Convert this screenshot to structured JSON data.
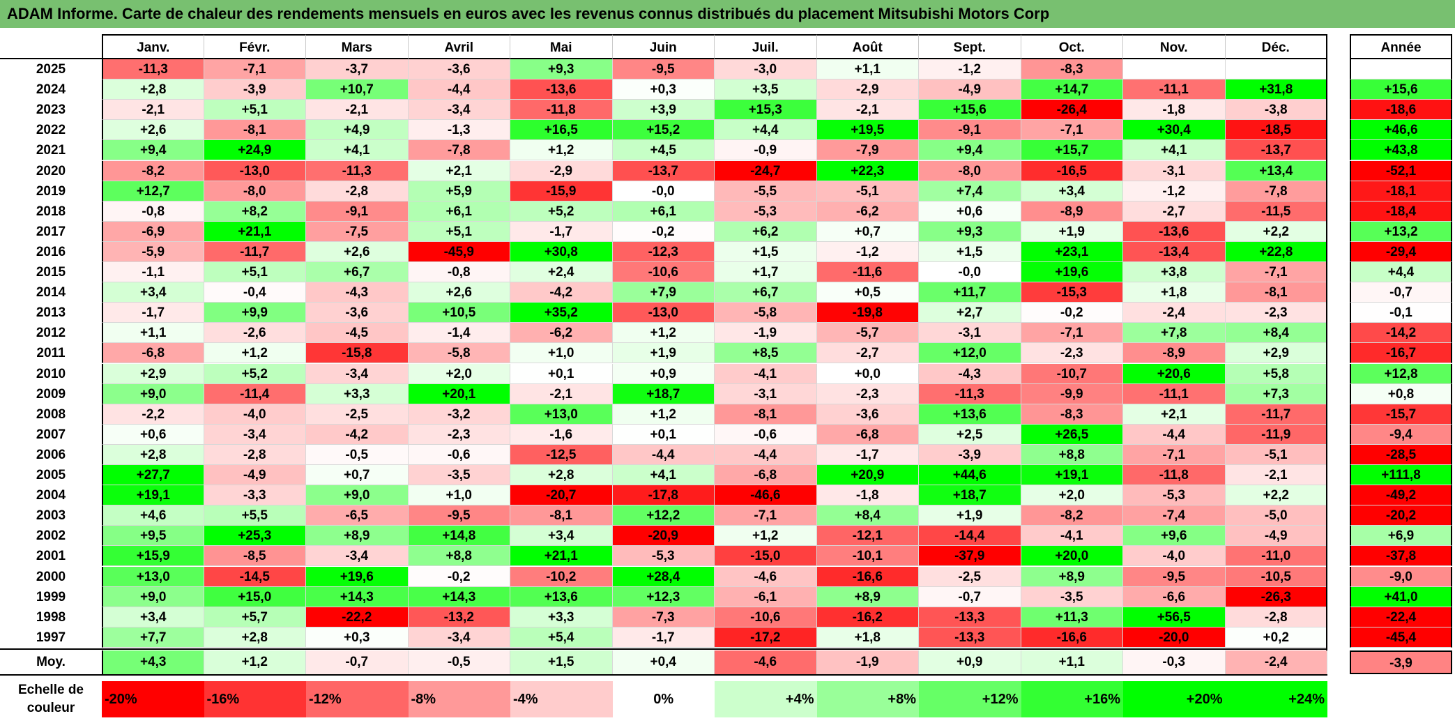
{
  "title": "ADAM Informe. Carte de chaleur des rendements mensuels en euros avec les revenus connus distribués du placement Mitsubishi Motors Corp",
  "chart_data": {
    "type": "heatmap",
    "title": "ADAM Informe. Carte de chaleur des rendements mensuels en euros avec les revenus connus distribués du placement Mitsubishi Motors Corp",
    "columns": [
      "Janv.",
      "Févr.",
      "Mars",
      "Avril",
      "Mai",
      "Juin",
      "Juil.",
      "Août",
      "Sept.",
      "Oct.",
      "Nov.",
      "Déc."
    ],
    "year_header": "Année",
    "rows": [
      {
        "year": "2025",
        "values": [
          "-11,3",
          "-7,1",
          "-3,7",
          "-3,6",
          "+9,3",
          "-9,5",
          "-3,0",
          "+1,1",
          "-1,2",
          "-8,3",
          "",
          ""
        ],
        "annual": ""
      },
      {
        "year": "2024",
        "values": [
          "+2,8",
          "-3,9",
          "+10,7",
          "-4,4",
          "-13,6",
          "+0,3",
          "+3,5",
          "-2,9",
          "-4,9",
          "+14,7",
          "-11,1",
          "+31,8"
        ],
        "annual": "+15,6"
      },
      {
        "year": "2023",
        "values": [
          "-2,1",
          "+5,1",
          "-2,1",
          "-3,4",
          "-11,8",
          "+3,9",
          "+15,3",
          "-2,1",
          "+15,6",
          "-26,4",
          "-1,8",
          "-3,8"
        ],
        "annual": "-18,6"
      },
      {
        "year": "2022",
        "values": [
          "+2,6",
          "-8,1",
          "+4,9",
          "-1,3",
          "+16,5",
          "+15,2",
          "+4,4",
          "+19,5",
          "-9,1",
          "-7,1",
          "+30,4",
          "-18,5"
        ],
        "annual": "+46,6"
      },
      {
        "year": "2021",
        "values": [
          "+9,4",
          "+24,9",
          "+4,1",
          "-7,8",
          "+1,2",
          "+4,5",
          "-0,9",
          "-7,9",
          "+9,4",
          "+15,7",
          "+4,1",
          "-13,7"
        ],
        "annual": "+43,8"
      },
      {
        "year": "2020",
        "values": [
          "-8,2",
          "-13,0",
          "-11,3",
          "+2,1",
          "-2,9",
          "-13,7",
          "-24,7",
          "+22,3",
          "-8,0",
          "-16,5",
          "-3,1",
          "+13,4"
        ],
        "annual": "-52,1"
      },
      {
        "year": "2019",
        "values": [
          "+12,7",
          "-8,0",
          "-2,8",
          "+5,9",
          "-15,9",
          "-0,0",
          "-5,5",
          "-5,1",
          "+7,4",
          "+3,4",
          "-1,2",
          "-7,8"
        ],
        "annual": "-18,1"
      },
      {
        "year": "2018",
        "values": [
          "-0,8",
          "+8,2",
          "-9,1",
          "+6,1",
          "+5,2",
          "+6,1",
          "-5,3",
          "-6,2",
          "+0,6",
          "-8,9",
          "-2,7",
          "-11,5"
        ],
        "annual": "-18,4"
      },
      {
        "year": "2017",
        "values": [
          "-6,9",
          "+21,1",
          "-7,5",
          "+5,1",
          "-1,7",
          "-0,2",
          "+6,2",
          "+0,7",
          "+9,3",
          "+1,9",
          "-13,6",
          "+2,2"
        ],
        "annual": "+13,2"
      },
      {
        "year": "2016",
        "values": [
          "-5,9",
          "-11,7",
          "+2,6",
          "-45,9",
          "+30,8",
          "-12,3",
          "+1,5",
          "-1,2",
          "+1,5",
          "+23,1",
          "-13,4",
          "+22,8"
        ],
        "annual": "-29,4"
      },
      {
        "year": "2015",
        "values": [
          "-1,1",
          "+5,1",
          "+6,7",
          "-0,8",
          "+2,4",
          "-10,6",
          "+1,7",
          "-11,6",
          "-0,0",
          "+19,6",
          "+3,8",
          "-7,1"
        ],
        "annual": "+4,4"
      },
      {
        "year": "2014",
        "values": [
          "+3,4",
          "-0,4",
          "-4,3",
          "+2,6",
          "-4,2",
          "+7,9",
          "+6,7",
          "+0,5",
          "+11,7",
          "-15,3",
          "+1,8",
          "-8,1"
        ],
        "annual": "-0,7"
      },
      {
        "year": "2013",
        "values": [
          "-1,7",
          "+9,9",
          "-3,6",
          "+10,5",
          "+35,2",
          "-13,0",
          "-5,8",
          "-19,8",
          "+2,7",
          "-0,2",
          "-2,4",
          "-2,3"
        ],
        "annual": "-0,1"
      },
      {
        "year": "2012",
        "values": [
          "+1,1",
          "-2,6",
          "-4,5",
          "-1,4",
          "-6,2",
          "+1,2",
          "-1,9",
          "-5,7",
          "-3,1",
          "-7,1",
          "+7,8",
          "+8,4"
        ],
        "annual": "-14,2"
      },
      {
        "year": "2011",
        "values": [
          "-6,8",
          "+1,2",
          "-15,8",
          "-5,8",
          "+1,0",
          "+1,9",
          "+8,5",
          "-2,7",
          "+12,0",
          "-2,3",
          "-8,9",
          "+2,9"
        ],
        "annual": "-16,7"
      },
      {
        "year": "2010",
        "values": [
          "+2,9",
          "+5,2",
          "-3,4",
          "+2,0",
          "+0,1",
          "+0,9",
          "-4,1",
          "+0,0",
          "-4,3",
          "-10,7",
          "+20,6",
          "+5,8"
        ],
        "annual": "+12,8"
      },
      {
        "year": "2009",
        "values": [
          "+9,0",
          "-11,4",
          "+3,3",
          "+20,1",
          "-2,1",
          "+18,7",
          "-3,1",
          "-2,3",
          "-11,3",
          "-9,9",
          "-11,1",
          "+7,3"
        ],
        "annual": "+0,8"
      },
      {
        "year": "2008",
        "values": [
          "-2,2",
          "-4,0",
          "-2,5",
          "-3,2",
          "+13,0",
          "+1,2",
          "-8,1",
          "-3,6",
          "+13,6",
          "-8,3",
          "+2,1",
          "-11,7"
        ],
        "annual": "-15,7"
      },
      {
        "year": "2007",
        "values": [
          "+0,6",
          "-3,4",
          "-4,2",
          "-2,3",
          "-1,6",
          "+0,1",
          "-0,6",
          "-6,8",
          "+2,5",
          "+26,5",
          "-4,4",
          "-11,9"
        ],
        "annual": "-9,4"
      },
      {
        "year": "2006",
        "values": [
          "+2,8",
          "-2,8",
          "-0,5",
          "-0,6",
          "-12,5",
          "-4,4",
          "-4,4",
          "-1,7",
          "-3,9",
          "+8,8",
          "-7,1",
          "-5,1"
        ],
        "annual": "-28,5"
      },
      {
        "year": "2005",
        "values": [
          "+27,7",
          "-4,9",
          "+0,7",
          "-3,5",
          "+2,8",
          "+4,1",
          "-6,8",
          "+20,9",
          "+44,6",
          "+19,1",
          "-11,8",
          "-2,1"
        ],
        "annual": "+111,8"
      },
      {
        "year": "2004",
        "values": [
          "+19,1",
          "-3,3",
          "+9,0",
          "+1,0",
          "-20,7",
          "-17,8",
          "-46,6",
          "-1,8",
          "+18,7",
          "+2,0",
          "-5,3",
          "+2,2"
        ],
        "annual": "-49,2"
      },
      {
        "year": "2003",
        "values": [
          "+4,6",
          "+5,5",
          "-6,5",
          "-9,5",
          "-8,1",
          "+12,2",
          "-7,1",
          "+8,4",
          "+1,9",
          "-8,2",
          "-7,4",
          "-5,0"
        ],
        "annual": "-20,2"
      },
      {
        "year": "2002",
        "values": [
          "+9,5",
          "+25,3",
          "+8,9",
          "+14,8",
          "+3,4",
          "-20,9",
          "+1,2",
          "-12,1",
          "-14,4",
          "-4,1",
          "+9,6",
          "-4,9"
        ],
        "annual": "+6,9"
      },
      {
        "year": "2001",
        "values": [
          "+15,9",
          "-8,5",
          "-3,4",
          "+8,8",
          "+21,1",
          "-5,3",
          "-15,0",
          "-10,1",
          "-37,9",
          "+20,0",
          "-4,0",
          "-11,0"
        ],
        "annual": "-37,8"
      },
      {
        "year": "2000",
        "values": [
          "+13,0",
          "-14,5",
          "+19,6",
          "-0,2",
          "-10,2",
          "+28,4",
          "-4,6",
          "-16,6",
          "-2,5",
          "+8,9",
          "-9,5",
          "-10,5"
        ],
        "annual": "-9,0"
      },
      {
        "year": "1999",
        "values": [
          "+9,0",
          "+15,0",
          "+14,3",
          "+14,3",
          "+13,6",
          "+12,3",
          "-6,1",
          "+8,9",
          "-0,7",
          "-3,5",
          "-6,6",
          "-26,3"
        ],
        "annual": "+41,0"
      },
      {
        "year": "1998",
        "values": [
          "+3,4",
          "+5,7",
          "-22,2",
          "-13,2",
          "+3,3",
          "-7,3",
          "-10,6",
          "-16,2",
          "-13,3",
          "+11,3",
          "+56,5",
          "-2,8"
        ],
        "annual": "-22,4"
      },
      {
        "year": "1997",
        "values": [
          "+7,7",
          "+2,8",
          "+0,3",
          "-3,4",
          "+5,4",
          "-1,7",
          "-17,2",
          "+1,8",
          "-13,3",
          "-16,6",
          "-20,0",
          "+0,2"
        ],
        "annual": "-45,4"
      }
    ],
    "average": {
      "label": "Moy.",
      "values": [
        "+4,3",
        "+1,2",
        "-0,7",
        "-0,5",
        "+1,5",
        "+0,4",
        "-4,6",
        "-1,9",
        "+0,9",
        "+1,1",
        "-0,3",
        "-2,4"
      ],
      "annual": "-3,9"
    },
    "color_scale": {
      "label": "Echelle de couleur",
      "steps": [
        {
          "label": "-20%",
          "color": "#ff0000"
        },
        {
          "label": "-16%",
          "color": "#ff3333"
        },
        {
          "label": "-12%",
          "color": "#ff6666"
        },
        {
          "label": "-8%",
          "color": "#ff9999"
        },
        {
          "label": "-4%",
          "color": "#ffcccc"
        },
        {
          "label": "0%",
          "color": "#ffffff"
        },
        {
          "label": "+4%",
          "color": "#ccffcc"
        },
        {
          "label": "+8%",
          "color": "#99ff99"
        },
        {
          "label": "+12%",
          "color": "#66ff66"
        },
        {
          "label": "+16%",
          "color": "#33ff33"
        },
        {
          "label": "+20%",
          "color": "#00ff00"
        },
        {
          "label": "+24%",
          "color": "#00ff00"
        }
      ]
    }
  }
}
